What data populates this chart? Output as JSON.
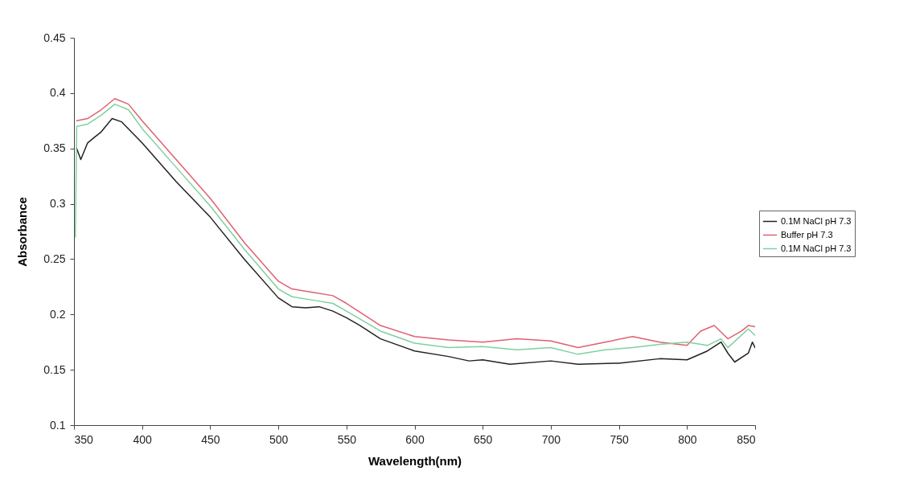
{
  "chart_data": {
    "type": "line",
    "xlabel": "Wavelength(nm)",
    "ylabel": "Absorbance",
    "xlim": [
      350,
      850
    ],
    "xticks": [
      350,
      400,
      450,
      500,
      550,
      600,
      650,
      700,
      750,
      800,
      850
    ],
    "ylim": [
      0.1,
      0.45
    ],
    "yticks": [
      0.1,
      0.15,
      0.2,
      0.25,
      0.3,
      0.35,
      0.4,
      0.45
    ],
    "grid": false,
    "legend": "right",
    "line_style": "solid",
    "marker": "none",
    "series": [
      {
        "name": "0.1M NaCl pH 7.3",
        "color": "#222222",
        "x": [
          352,
          355,
          360,
          365,
          370,
          378,
          385,
          400,
          425,
          450,
          475,
          500,
          510,
          520,
          530,
          540,
          550,
          560,
          575,
          600,
          625,
          640,
          650,
          670,
          700,
          720,
          750,
          780,
          800,
          815,
          825,
          830,
          835,
          845,
          848,
          850
        ],
        "values": [
          0.35,
          0.34,
          0.355,
          0.36,
          0.365,
          0.377,
          0.374,
          0.355,
          0.32,
          0.288,
          0.25,
          0.215,
          0.207,
          0.206,
          0.207,
          0.203,
          0.197,
          0.19,
          0.178,
          0.167,
          0.162,
          0.158,
          0.159,
          0.155,
          0.158,
          0.155,
          0.156,
          0.16,
          0.159,
          0.167,
          0.175,
          0.165,
          0.157,
          0.165,
          0.175,
          0.17
        ]
      },
      {
        "name": "Buffer pH 7.3",
        "color": "#e06070",
        "x": [
          352,
          360,
          370,
          380,
          390,
          400,
          425,
          450,
          475,
          500,
          510,
          525,
          540,
          550,
          575,
          600,
          625,
          650,
          675,
          700,
          720,
          740,
          760,
          780,
          800,
          810,
          820,
          830,
          840,
          845,
          850
        ],
        "values": [
          0.375,
          0.377,
          0.385,
          0.395,
          0.39,
          0.375,
          0.34,
          0.305,
          0.265,
          0.23,
          0.223,
          0.22,
          0.217,
          0.21,
          0.19,
          0.18,
          0.177,
          0.175,
          0.178,
          0.176,
          0.17,
          0.175,
          0.18,
          0.175,
          0.172,
          0.185,
          0.19,
          0.178,
          0.185,
          0.19,
          0.189
        ]
      },
      {
        "name": "0.1M NaCl pH 7.3",
        "color": "#80d0a0",
        "x": [
          351,
          352,
          360,
          370,
          380,
          390,
          400,
          425,
          450,
          475,
          500,
          510,
          525,
          540,
          550,
          575,
          600,
          625,
          650,
          675,
          700,
          720,
          740,
          760,
          780,
          800,
          815,
          825,
          830,
          845,
          850
        ],
        "values": [
          0.27,
          0.37,
          0.372,
          0.38,
          0.39,
          0.385,
          0.368,
          0.333,
          0.298,
          0.259,
          0.223,
          0.216,
          0.213,
          0.21,
          0.203,
          0.185,
          0.174,
          0.17,
          0.171,
          0.168,
          0.17,
          0.164,
          0.168,
          0.17,
          0.173,
          0.175,
          0.172,
          0.178,
          0.17,
          0.187,
          0.181
        ]
      }
    ]
  }
}
